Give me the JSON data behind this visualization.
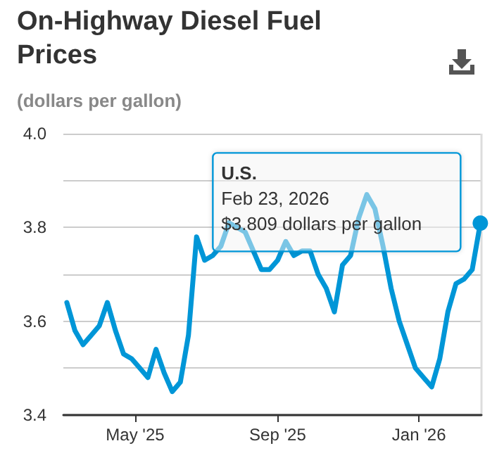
{
  "chart_data": {
    "type": "line",
    "title": "On-Highway Diesel Fuel Prices",
    "subtitle": "(dollars per gallon)",
    "x": [
      "2025-03-03",
      "2025-03-10",
      "2025-03-17",
      "2025-03-24",
      "2025-03-31",
      "2025-04-07",
      "2025-04-14",
      "2025-04-21",
      "2025-04-28",
      "2025-05-05",
      "2025-05-12",
      "2025-05-19",
      "2025-05-26",
      "2025-06-02",
      "2025-06-09",
      "2025-06-16",
      "2025-06-23",
      "2025-06-30",
      "2025-07-07",
      "2025-07-14",
      "2025-07-21",
      "2025-07-28",
      "2025-08-04",
      "2025-08-11",
      "2025-08-18",
      "2025-08-25",
      "2025-09-01",
      "2025-09-08",
      "2025-09-15",
      "2025-09-22",
      "2025-09-29",
      "2025-10-06",
      "2025-10-13",
      "2025-10-20",
      "2025-10-27",
      "2025-11-03",
      "2025-11-10",
      "2025-11-17",
      "2025-11-24",
      "2025-12-01",
      "2025-12-08",
      "2025-12-15",
      "2025-12-22",
      "2025-12-29",
      "2026-01-05",
      "2026-01-12",
      "2026-01-19",
      "2026-01-26",
      "2026-02-02",
      "2026-02-09",
      "2026-02-16",
      "2026-02-23"
    ],
    "series": [
      {
        "name": "U.S.",
        "color": "#0096d7",
        "values": [
          3.64,
          3.58,
          3.55,
          3.57,
          3.59,
          3.64,
          3.58,
          3.53,
          3.52,
          3.5,
          3.48,
          3.54,
          3.49,
          3.45,
          3.47,
          3.57,
          3.78,
          3.73,
          3.74,
          3.76,
          3.81,
          3.8,
          3.79,
          3.75,
          3.71,
          3.71,
          3.73,
          3.77,
          3.74,
          3.75,
          3.75,
          3.7,
          3.67,
          3.62,
          3.72,
          3.74,
          3.82,
          3.87,
          3.84,
          3.76,
          3.67,
          3.6,
          3.55,
          3.5,
          3.48,
          3.46,
          3.52,
          3.62,
          3.68,
          3.69,
          3.71,
          3.809
        ]
      }
    ],
    "xlim": [
      "2025-02-28",
      "2026-02-24"
    ],
    "xticks": [
      {
        "value": "2025-05-01",
        "label": "May '25"
      },
      {
        "value": "2025-09-01",
        "label": "Sep '25"
      },
      {
        "value": "2026-01-01",
        "label": "Jan '26"
      }
    ],
    "ylim": [
      3.4,
      4.0
    ],
    "yticks": [
      {
        "value": 3.4,
        "label": "3.4"
      },
      {
        "value": 3.6,
        "label": "3.6"
      },
      {
        "value": 3.8,
        "label": "3.8"
      },
      {
        "value": 4.0,
        "label": "4.0"
      }
    ],
    "grid": "y",
    "legend": false,
    "marker": "none",
    "line_style": "solid",
    "annotations": [
      "Feb 23, 2026",
      "$3.809 dollars per gallon"
    ]
  }
}
